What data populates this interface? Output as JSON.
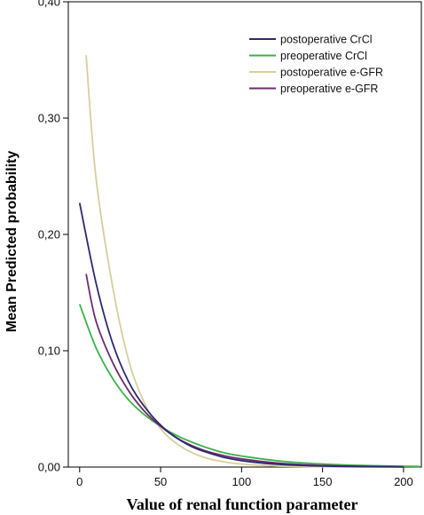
{
  "chart_data": {
    "type": "line",
    "xlabel": "Value of renal function parameter",
    "ylabel": "Mean Predicted probability",
    "xlim": [
      -7,
      211
    ],
    "ylim": [
      0,
      0.4
    ],
    "x_ticks": [
      0,
      50,
      100,
      150,
      200
    ],
    "x_tick_labels": [
      "0",
      "50",
      "100",
      "150",
      "200"
    ],
    "y_ticks": [
      0,
      0.1,
      0.2,
      0.3,
      0.4
    ],
    "y_tick_labels": [
      "0,00",
      "0,10",
      "0,20",
      "0,30",
      "0,40"
    ],
    "grid": false,
    "legend_position": "top-right",
    "series": [
      {
        "name": "postoperative CrCl",
        "color": "#2e2a6e",
        "x": [
          0,
          10,
          20,
          30,
          40,
          50,
          60,
          70,
          80,
          90,
          100,
          120,
          140,
          160,
          180,
          200
        ],
        "y": [
          0.227,
          0.159,
          0.108,
          0.074,
          0.052,
          0.036,
          0.025,
          0.017,
          0.012,
          0.008,
          0.0055,
          0.0026,
          0.0012,
          0.0006,
          0.0003,
          0.0001
        ]
      },
      {
        "name": "preoperative CrCl",
        "color": "#3db24b",
        "x": [
          0,
          10,
          20,
          30,
          40,
          50,
          60,
          70,
          80,
          90,
          100,
          120,
          140,
          160,
          180,
          200,
          210
        ],
        "y": [
          0.14,
          0.103,
          0.077,
          0.058,
          0.045,
          0.035,
          0.027,
          0.021,
          0.016,
          0.012,
          0.0095,
          0.0057,
          0.0034,
          0.002,
          0.0012,
          0.0007,
          0.0005
        ]
      },
      {
        "name": "postoperative e-GFR",
        "color": "#d6cf9c",
        "x": [
          4,
          10,
          20,
          30,
          40,
          50,
          60,
          70,
          80,
          90,
          100,
          120,
          140,
          160,
          180,
          200
        ],
        "y": [
          0.354,
          0.25,
          0.158,
          0.093,
          0.055,
          0.033,
          0.02,
          0.012,
          0.007,
          0.0043,
          0.0026,
          0.001,
          0.0004,
          0.0002,
          0.0001,
          5e-05
        ]
      },
      {
        "name": "preoperative e-GFR",
        "color": "#6b2d6f",
        "x": [
          4,
          10,
          20,
          30,
          40,
          50,
          60,
          70,
          80,
          90,
          100,
          120,
          140,
          160,
          180,
          200
        ],
        "y": [
          0.166,
          0.126,
          0.091,
          0.066,
          0.048,
          0.035,
          0.025,
          0.018,
          0.013,
          0.0095,
          0.007,
          0.0037,
          0.0019,
          0.001,
          0.0005,
          0.0003
        ]
      }
    ]
  }
}
